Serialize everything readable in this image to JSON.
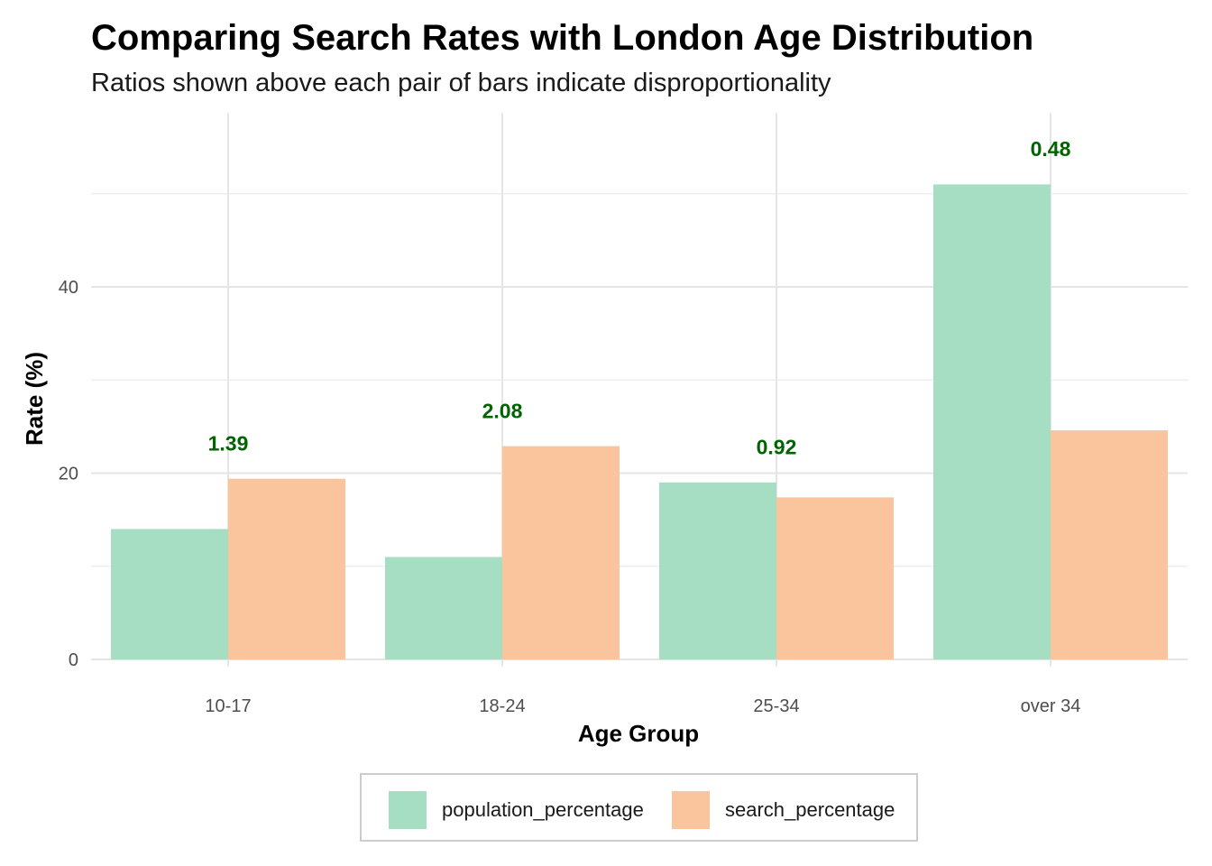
{
  "chart_data": {
    "type": "bar",
    "title": "Comparing Search Rates with London Age Distribution",
    "subtitle": "Ratios shown above each pair of bars indicate disproportionality",
    "xlabel": "Age Group",
    "ylabel": "Rate (%)",
    "categories": [
      "10-17",
      "18-24",
      "25-34",
      "over 34"
    ],
    "series": [
      {
        "name": "population_percentage",
        "values": [
          14.0,
          11.0,
          19.0,
          51.0
        ],
        "color": "#a6dec4"
      },
      {
        "name": "search_percentage",
        "values": [
          19.4,
          22.9,
          17.4,
          24.6
        ],
        "color": "#fac49c"
      }
    ],
    "ratios": [
      "1.39",
      "2.08",
      "0.92",
      "0.48"
    ],
    "ratio_color": "#006400",
    "ylim": [
      0,
      57.5
    ],
    "yticks": [
      0,
      20,
      40
    ],
    "grid": true,
    "legend_position": "bottom"
  }
}
